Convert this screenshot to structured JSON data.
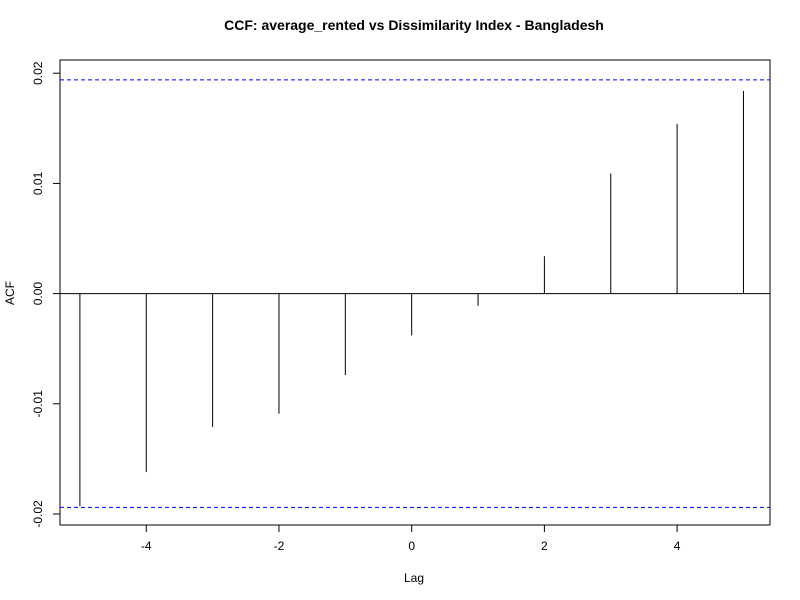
{
  "chart_data": {
    "type": "bar",
    "title": "CCF: average_rented vs Dissimilarity Index - Bangladesh",
    "xlabel": "Lag",
    "ylabel": "ACF",
    "xlim": [
      -5.3,
      5.4
    ],
    "ylim": [
      -0.021,
      0.0212
    ],
    "x_ticks": [
      -4,
      -2,
      0,
      2,
      4
    ],
    "x_tick_labels": [
      "-4",
      "-2",
      "0",
      "2",
      "4"
    ],
    "y_ticks": [
      -0.02,
      -0.01,
      0.0,
      0.01,
      0.02
    ],
    "y_tick_labels": [
      "-0.02",
      "-0.01",
      "0.00",
      "0.01",
      "0.02"
    ],
    "lags": [
      -5,
      -4,
      -3,
      -2,
      -1,
      0,
      1,
      2,
      3,
      4,
      5
    ],
    "values": [
      -0.0193,
      -0.0162,
      -0.0121,
      -0.0109,
      -0.0074,
      -0.0038,
      -0.0011,
      0.0034,
      0.0109,
      0.0154,
      0.0184
    ],
    "confidence_bound": 0.0194,
    "grid": false,
    "colors": {
      "bars": "#000000",
      "confidence_lines": "#0000ff",
      "zero_line": "#000000"
    }
  }
}
